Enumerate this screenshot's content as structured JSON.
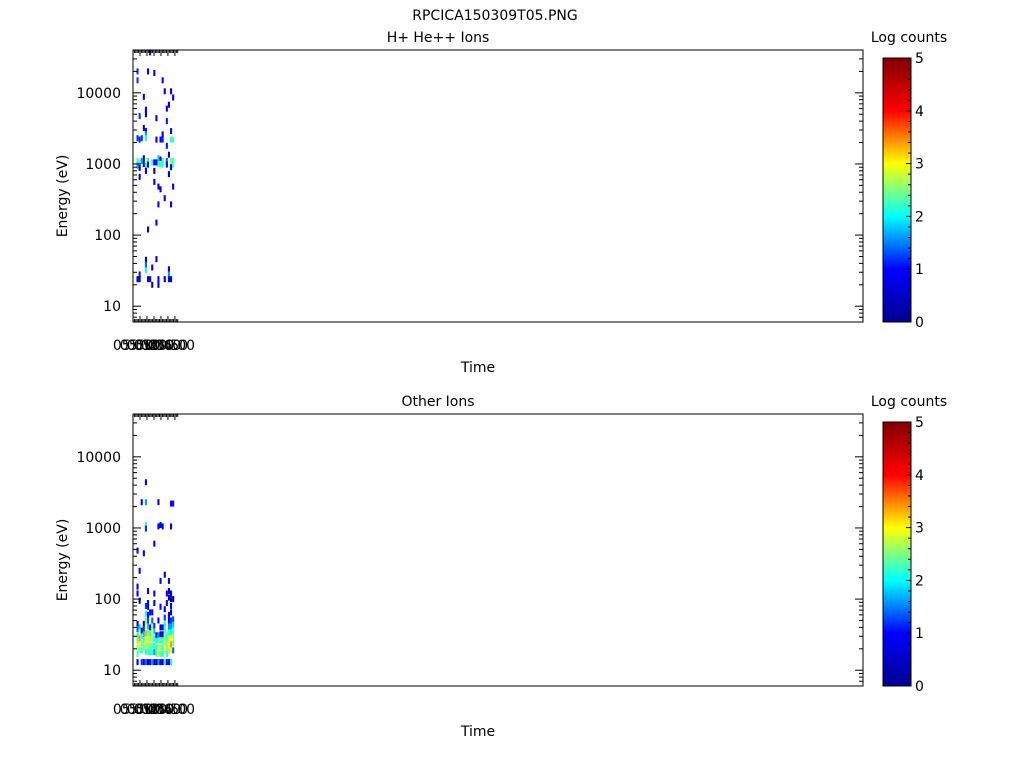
{
  "figure_title": "RPCICA150309T05.PNG",
  "colorscale": {
    "stops": [
      "#00008f",
      "#0000ff",
      "#00ffff",
      "#ffff00",
      "#ff0000",
      "#800000"
    ],
    "range": [
      0,
      5
    ]
  },
  "chart_data": [
    {
      "type": "heatmap",
      "title": "H+ He++ Ions",
      "xlabel": "Time",
      "ylabel": "Energy (eV)",
      "colorbar_label": "Log counts",
      "colorbar_ticks": [
        "0",
        "1",
        "2",
        "3",
        "4",
        "5"
      ],
      "x_ticks": [
        "05:00",
        "05:10",
        "05:20",
        "05:30",
        "05:40",
        "05:50",
        "06:00"
      ],
      "x_range_min": [
        300,
        1345
      ],
      "y_scale": "log",
      "y_ticks": [
        "10",
        "100",
        "1000",
        "10000"
      ],
      "y_range": [
        6,
        40000
      ],
      "time_bins_min": [
        305,
        308,
        311,
        314,
        317,
        320,
        323,
        326,
        329,
        332,
        335,
        338,
        341,
        344,
        347,
        350,
        353,
        356,
        359
      ],
      "cells": [
        [
          305,
          20000,
          1.2
        ],
        [
          305,
          15000,
          1.2
        ],
        [
          305,
          2300,
          1.2
        ],
        [
          305,
          1100,
          2.2
        ],
        [
          305,
          950,
          1.6
        ],
        [
          305,
          24,
          0.2
        ],
        [
          308,
          4700,
          1.2
        ],
        [
          308,
          2200,
          1.2
        ],
        [
          308,
          1050,
          2.4
        ],
        [
          308,
          880,
          1.0
        ],
        [
          308,
          660,
          0.8
        ],
        [
          308,
          28,
          1.1
        ],
        [
          308,
          24,
          0.8
        ],
        [
          311,
          2300,
          1.2
        ],
        [
          311,
          1100,
          1.6
        ],
        [
          314,
          8800,
          1.0
        ],
        [
          314,
          3200,
          0.8
        ],
        [
          314,
          1200,
          0.6
        ],
        [
          314,
          1000,
          0.9
        ],
        [
          317,
          5800,
          0.8
        ],
        [
          317,
          5000,
          0.7
        ],
        [
          317,
          2900,
          0.8
        ],
        [
          317,
          2600,
          1.6
        ],
        [
          317,
          2300,
          2.2
        ],
        [
          317,
          1100,
          2.9
        ],
        [
          317,
          930,
          2.0
        ],
        [
          317,
          800,
          1.0
        ],
        [
          317,
          45,
          0.7
        ],
        [
          317,
          38,
          1.4
        ],
        [
          317,
          32,
          2.0
        ],
        [
          320,
          20000,
          0.8
        ],
        [
          320,
          1100,
          2.1
        ],
        [
          320,
          980,
          1.0
        ],
        [
          320,
          120,
          0.8
        ],
        [
          320,
          24,
          0.5
        ],
        [
          323,
          37000,
          0.9
        ],
        [
          323,
          24,
          0.4
        ],
        [
          326,
          1050,
          2.1
        ],
        [
          326,
          35,
          0.8
        ],
        [
          326,
          20,
          0.4
        ],
        [
          329,
          19000,
          1.0
        ],
        [
          329,
          1050,
          0.6
        ],
        [
          329,
          800,
          0.3
        ],
        [
          329,
          560,
          0.9
        ],
        [
          332,
          4400,
          0.8
        ],
        [
          332,
          2200,
          0.9
        ],
        [
          332,
          1050,
          0.9
        ],
        [
          332,
          150,
          0.9
        ],
        [
          332,
          46,
          0.8
        ],
        [
          335,
          1200,
          1.8
        ],
        [
          335,
          1000,
          2.2
        ],
        [
          335,
          480,
          0.8
        ],
        [
          335,
          270,
          1.0
        ],
        [
          335,
          24,
          0.9
        ],
        [
          335,
          20,
          0.6
        ],
        [
          338,
          2200,
          1.0
        ],
        [
          338,
          1150,
          0.4
        ],
        [
          338,
          1000,
          2.2
        ],
        [
          338,
          440,
          0.8
        ],
        [
          341,
          15000,
          1.0
        ],
        [
          341,
          2600,
          0.8
        ],
        [
          341,
          2200,
          1.1
        ],
        [
          341,
          1100,
          2.2
        ],
        [
          341,
          970,
          2.2
        ],
        [
          344,
          10500,
          0.8
        ],
        [
          344,
          330,
          1.0
        ],
        [
          344,
          24,
          0.5
        ],
        [
          347,
          6000,
          1.0
        ],
        [
          347,
          4000,
          1.1
        ],
        [
          347,
          1800,
          1.1
        ],
        [
          347,
          1100,
          1.4
        ],
        [
          347,
          980,
          1.0
        ],
        [
          350,
          6800,
          0.6
        ],
        [
          350,
          1350,
          0.6
        ],
        [
          350,
          720,
          0.8
        ],
        [
          350,
          33,
          1.0
        ],
        [
          350,
          28,
          1.6
        ],
        [
          350,
          24,
          1.0
        ],
        [
          353,
          10500,
          1.0
        ],
        [
          353,
          2900,
          1.0
        ],
        [
          353,
          2200,
          2.2
        ],
        [
          353,
          1100,
          2.4
        ],
        [
          353,
          980,
          2.6
        ],
        [
          353,
          900,
          1.0
        ],
        [
          353,
          270,
          1.0
        ],
        [
          353,
          24,
          0.6
        ],
        [
          356,
          8600,
          0.5
        ],
        [
          356,
          2200,
          2.2
        ],
        [
          356,
          1100,
          2.3
        ],
        [
          356,
          980,
          2.3
        ],
        [
          356,
          480,
          1.0
        ]
      ]
    },
    {
      "type": "heatmap",
      "title": "Other Ions",
      "xlabel": "Time",
      "ylabel": "Energy (eV)",
      "colorbar_label": "Log counts",
      "colorbar_ticks": [
        "0",
        "1",
        "2",
        "3",
        "4",
        "5"
      ],
      "x_ticks": [
        "05:00",
        "05:10",
        "05:20",
        "05:30",
        "05:40",
        "05:50",
        "06:00"
      ],
      "x_range_min": [
        300,
        1345
      ],
      "y_scale": "log",
      "y_ticks": [
        "10",
        "100",
        "1000",
        "10000"
      ],
      "y_range": [
        6,
        40000
      ],
      "time_bins_min": [
        305,
        308,
        311,
        314,
        317,
        320,
        323,
        326,
        329,
        332,
        335,
        338,
        341,
        344,
        347,
        350,
        353,
        356,
        359
      ],
      "cells": [
        [
          305,
          480,
          1.0
        ],
        [
          305,
          150,
          1.0
        ],
        [
          305,
          120,
          1.0
        ],
        [
          305,
          45,
          0.7
        ],
        [
          305,
          38,
          1.4
        ],
        [
          305,
          31,
          2.0
        ],
        [
          305,
          26,
          2.4
        ],
        [
          305,
          21,
          2.6
        ],
        [
          305,
          17,
          2.3
        ],
        [
          305,
          13,
          1.0
        ],
        [
          308,
          250,
          1.0
        ],
        [
          308,
          95,
          0.4
        ],
        [
          308,
          40,
          1.8
        ],
        [
          308,
          34,
          2.8
        ],
        [
          308,
          28,
          3.4
        ],
        [
          308,
          23,
          3.0
        ],
        [
          308,
          19,
          2.4
        ],
        [
          311,
          2300,
          1.0
        ],
        [
          311,
          36,
          0.4
        ],
        [
          311,
          30,
          2.1
        ],
        [
          311,
          24,
          2.4
        ],
        [
          311,
          19,
          2.2
        ],
        [
          311,
          13,
          1.2
        ],
        [
          314,
          440,
          1.0
        ],
        [
          314,
          45,
          0.6
        ],
        [
          314,
          38,
          1.2
        ],
        [
          314,
          32,
          1.8
        ],
        [
          314,
          26,
          2.3
        ],
        [
          314,
          21,
          2.4
        ],
        [
          314,
          13,
          1.0
        ],
        [
          317,
          4400,
          1.0
        ],
        [
          317,
          2300,
          1.6
        ],
        [
          317,
          1100,
          2.2
        ],
        [
          317,
          980,
          1.2
        ],
        [
          317,
          80,
          1.2
        ],
        [
          317,
          62,
          2.0
        ],
        [
          317,
          50,
          2.6
        ],
        [
          317,
          41,
          2.9
        ],
        [
          317,
          33,
          3.3
        ],
        [
          317,
          27,
          3.0
        ],
        [
          317,
          22,
          2.6
        ],
        [
          317,
          18,
          2.2
        ],
        [
          317,
          13,
          1.4
        ],
        [
          320,
          130,
          0.8
        ],
        [
          320,
          88,
          1.0
        ],
        [
          320,
          78,
          0.8
        ],
        [
          320,
          60,
          1.0
        ],
        [
          320,
          50,
          1.3
        ],
        [
          320,
          41,
          1.8
        ],
        [
          320,
          33,
          2.4
        ],
        [
          320,
          27,
          2.8
        ],
        [
          320,
          22,
          2.6
        ],
        [
          320,
          18,
          2.3
        ],
        [
          320,
          13,
          0.6
        ],
        [
          323,
          65,
          1.0
        ],
        [
          323,
          40,
          0.6
        ],
        [
          323,
          33,
          2.1
        ],
        [
          323,
          27,
          2.6
        ],
        [
          323,
          22,
          2.4
        ],
        [
          323,
          18,
          2.1
        ],
        [
          323,
          13,
          1.0
        ],
        [
          326,
          65,
          0.8
        ],
        [
          326,
          50,
          1.4
        ],
        [
          326,
          41,
          2.6
        ],
        [
          326,
          33,
          3.0
        ],
        [
          326,
          27,
          2.6
        ],
        [
          326,
          22,
          2.4
        ],
        [
          326,
          18,
          2.2
        ],
        [
          326,
          13,
          1.6
        ],
        [
          329,
          600,
          1.0
        ],
        [
          329,
          120,
          1.0
        ],
        [
          329,
          88,
          1.0
        ],
        [
          329,
          42,
          1.2
        ],
        [
          329,
          35,
          1.8
        ],
        [
          329,
          28,
          2.1
        ],
        [
          329,
          22,
          2.2
        ],
        [
          329,
          18,
          1.6
        ],
        [
          329,
          13,
          0.7
        ],
        [
          332,
          31,
          1.0
        ],
        [
          332,
          26,
          2.0
        ],
        [
          332,
          21,
          2.1
        ],
        [
          332,
          17,
          2.2
        ],
        [
          332,
          13,
          0.4
        ],
        [
          335,
          2300,
          1.0
        ],
        [
          335,
          1050,
          1.0
        ],
        [
          335,
          50,
          1.0
        ],
        [
          335,
          31,
          1.6
        ],
        [
          335,
          26,
          2.4
        ],
        [
          335,
          21,
          2.8
        ],
        [
          335,
          17,
          2.8
        ],
        [
          335,
          13,
          1.6
        ],
        [
          338,
          1100,
          0.6
        ],
        [
          338,
          180,
          1.0
        ],
        [
          338,
          78,
          1.0
        ],
        [
          338,
          40,
          0.8
        ],
        [
          338,
          32,
          0.3
        ],
        [
          338,
          26,
          2.3
        ],
        [
          338,
          21,
          2.6
        ],
        [
          338,
          17,
          2.3
        ],
        [
          338,
          13,
          0.9
        ],
        [
          341,
          1050,
          1.0
        ],
        [
          341,
          40,
          0.4
        ],
        [
          341,
          32,
          0.4
        ],
        [
          341,
          26,
          2.1
        ],
        [
          341,
          21,
          2.2
        ],
        [
          341,
          17,
          2.0
        ],
        [
          341,
          13,
          0.3
        ],
        [
          344,
          220,
          0.5
        ],
        [
          344,
          72,
          0.9
        ],
        [
          344,
          55,
          1.2
        ],
        [
          344,
          44,
          2.0
        ],
        [
          344,
          36,
          2.2
        ],
        [
          344,
          29,
          2.5
        ],
        [
          344,
          24,
          2.8
        ],
        [
          344,
          19,
          3.0
        ],
        [
          344,
          13,
          2.2
        ],
        [
          347,
          120,
          1.0
        ],
        [
          347,
          88,
          1.0
        ],
        [
          347,
          31,
          2.2
        ],
        [
          347,
          26,
          2.3
        ],
        [
          347,
          21,
          2.4
        ],
        [
          347,
          17,
          2.1
        ],
        [
          347,
          13,
          0.9
        ],
        [
          350,
          180,
          1.0
        ],
        [
          350,
          130,
          0.3
        ],
        [
          350,
          105,
          0.3
        ],
        [
          350,
          60,
          0.6
        ],
        [
          350,
          50,
          1.0
        ],
        [
          350,
          41,
          1.6
        ],
        [
          350,
          34,
          2.2
        ],
        [
          350,
          28,
          2.8
        ],
        [
          350,
          23,
          3.0
        ],
        [
          350,
          19,
          2.6
        ],
        [
          350,
          13,
          1.0
        ],
        [
          353,
          2200,
          1.0
        ],
        [
          353,
          1050,
          1.0
        ],
        [
          353,
          120,
          0.5
        ],
        [
          353,
          100,
          0.5
        ],
        [
          353,
          80,
          1.0
        ],
        [
          353,
          65,
          1.0
        ],
        [
          353,
          50,
          1.2
        ],
        [
          353,
          41,
          1.6
        ],
        [
          353,
          34,
          2.0
        ],
        [
          353,
          28,
          3.0
        ],
        [
          353,
          23,
          3.4
        ],
        [
          353,
          19,
          3.0
        ],
        [
          353,
          13,
          2.0
        ],
        [
          356,
          2200,
          1.0
        ],
        [
          356,
          100,
          0.5
        ],
        [
          356,
          52,
          1.3
        ],
        [
          356,
          43,
          1.8
        ],
        [
          356,
          36,
          2.3
        ],
        [
          356,
          30,
          2.6
        ],
        [
          356,
          24,
          2.4
        ],
        [
          356,
          19,
          1.4
        ]
      ]
    }
  ]
}
